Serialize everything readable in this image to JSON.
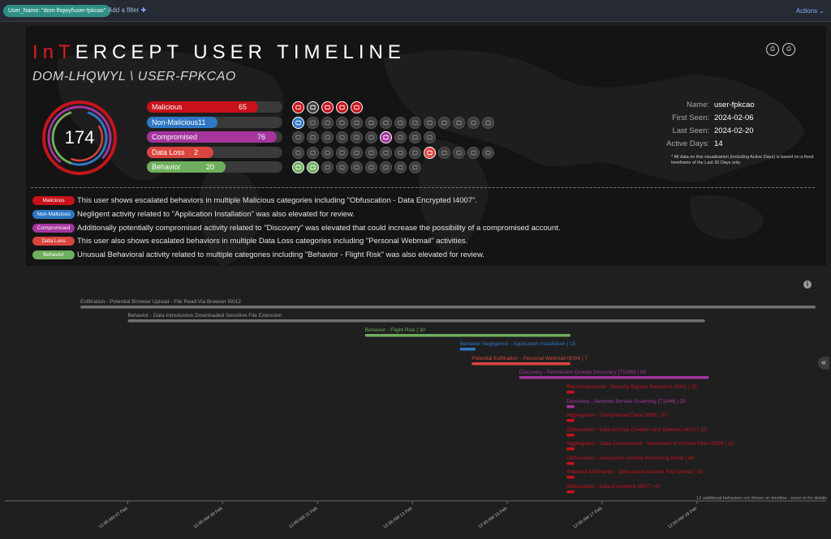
{
  "filterbar": {
    "filter_pill": "User_Name: \"dom-lhqwyl\\user-fpkcao\"",
    "add_filter": "Add a filter",
    "actions": "Actions"
  },
  "header": {
    "title_red": "InT",
    "title_rest": "ERCEPT USER TIMELINE",
    "subtitle": "DOM-LHQWYL \\ USER-FPKCAO",
    "pdf_buttons": [
      "pdf-landscape-icon",
      "pdf-portrait-icon"
    ]
  },
  "score": {
    "value": "174",
    "colors": {
      "outer": "#c5141b",
      "mid": "#a5359c",
      "inner_blue": "#2f78c4",
      "inner_green": "#6fae5c",
      "inner_red": "#d9443d"
    }
  },
  "categories": [
    {
      "label": "Malicious",
      "count": "65",
      "fraction": 0.82,
      "color": "#c8111a"
    },
    {
      "label": "Non-Malicious",
      "count": "11",
      "fraction": 0.52,
      "color": "#2f78c4"
    },
    {
      "label": "Compromised",
      "count": "76",
      "fraction": 0.96,
      "color": "#a5359c"
    },
    {
      "label": "Data Loss",
      "count": "2",
      "fraction": 0.49,
      "color": "#d9443d"
    },
    {
      "label": "Behavior",
      "count": "20",
      "fraction": 0.58,
      "color": "#6fae5c"
    }
  ],
  "icon_rows": [
    [
      "search-icon",
      "shield-icon",
      "file-lock-icon",
      "mail-icon",
      "export-icon"
    ],
    [
      "download-icon",
      "globe-icon",
      "clock-icon",
      "minus-icon",
      "printer-icon",
      "usb-icon",
      "folder-icon",
      "list-icon",
      "monitor-icon",
      "image-icon",
      "document-icon",
      "copy-icon",
      "calendar-icon",
      "laptop-icon"
    ],
    [
      "user-icon",
      "key-icon",
      "lock-icon",
      "chat-icon",
      "gear-icon",
      "magnifier-icon",
      "monitor-icon",
      "screen-icon",
      "terminal-icon",
      "display-icon"
    ],
    [
      "archive-icon",
      "camera-icon",
      "phone-icon",
      "bluetooth-icon",
      "cloud-icon",
      "wifi-icon",
      "tablet-icon",
      "envelope-icon",
      "card-icon",
      "screen-icon",
      "server-icon",
      "network-icon",
      "drive-icon",
      "share-icon"
    ],
    [
      "briefcase-icon",
      "flight-icon",
      "person-icon",
      "edit-icon",
      "badge-icon",
      "chart-icon",
      "lock-icon",
      "flag-icon",
      "bell-icon"
    ]
  ],
  "icon_highlights": {
    "0": {
      "0": "#c8111a",
      "1": "#3d3d3d",
      "2": "#c8111a",
      "3": "#c8111a",
      "4": "#c8111a"
    },
    "1": {
      "0": "#2f78c4"
    },
    "2": {
      "6": "#a5359c"
    },
    "3": {
      "9": "#d9443d"
    },
    "4": {
      "0": "#6fae5c",
      "1": "#6fae5c"
    }
  },
  "user_info": {
    "rows": [
      {
        "label": "Name:",
        "value": "user-fpkcao"
      },
      {
        "label": "First Seen:",
        "value": "2024-02-06"
      },
      {
        "label": "Last Seen:",
        "value": "2024-02-20"
      },
      {
        "label": "Active Days:",
        "value": "14"
      }
    ],
    "note": "* All data on this visualisation (including Active Days) is based on a fixed timeframe of the Last 30 Days only."
  },
  "summary": [
    {
      "badge": "Malicious",
      "color": "#c8111a",
      "text": "This user shows escalated behaviors in multiple Malicious categories including \"Obfuscation - Data Encrypted I4007\"."
    },
    {
      "badge": "Non-Malicious",
      "color": "#2f78c4",
      "text": "Negligent activity related to \"Application Installation\" was also elevated for review."
    },
    {
      "badge": "Compromised",
      "color": "#a5359c",
      "text": "Additionally potentially compromised activity related to \"Discovery\" was elevated that could increase the possibility of a compromised account."
    },
    {
      "badge": "Data Loss",
      "color": "#d9443d",
      "text": "This user also shows escalated behaviors in multiple Data Loss categories including \"Personal Webmail\" activities."
    },
    {
      "badge": "Behavior",
      "color": "#6fae5c",
      "text": "Unusual Behavioral activity related to multiple categories including \"Behavior - Flight Risk\" was also elevated for review."
    }
  ],
  "timeline": {
    "start": "2024-02-06T00:00",
    "end": "2024-02-21T12:00",
    "axis_ticks": [
      {
        "label": "12:00 AM 07 Feb",
        "t": "2024-02-07T00:00"
      },
      {
        "label": "12:00 AM 09 Feb",
        "t": "2024-02-09T00:00"
      },
      {
        "label": "12:00 AM 11 Feb",
        "t": "2024-02-11T00:00"
      },
      {
        "label": "12:00 AM 13 Feb",
        "t": "2024-02-13T00:00"
      },
      {
        "label": "12:00 AM 15 Feb",
        "t": "2024-02-15T00:00"
      },
      {
        "label": "12:00 AM 17 Feb",
        "t": "2024-02-17T00:00"
      },
      {
        "label": "12:00 AM 19 Feb",
        "t": "2024-02-19T00:00"
      }
    ],
    "items": [
      {
        "label": "Exfiltration - Potential Browser Upload - File Read Via Browser I5012",
        "start": "2024-02-06T00:00",
        "end": "2024-02-21T12:00",
        "color": "#707070"
      },
      {
        "label": "Behavior - Data Introduction Downloaded Sensitive File Extension",
        "start": "2024-02-07T00:00",
        "end": "2024-02-19T04:00",
        "color": "#707070"
      },
      {
        "label": "Behavior - Flight Risk | 30",
        "start": "2024-02-12T00:00",
        "end": "2024-02-16T08:00",
        "color": "#6fae5c"
      },
      {
        "label": "Behavior Negligence - Application Installation | 15",
        "start": "2024-02-14T00:00",
        "end": "2024-02-14T08:00",
        "color": "#2f78c4"
      },
      {
        "label": "Potential Exfiltration - Personal Webmail I5004 | 7",
        "start": "2024-02-14T06:00",
        "end": "2024-02-16T08:00",
        "color": "#d9443d"
      },
      {
        "label": "Discovery - Permission Groups Discovery [T1069] | 55",
        "start": "2024-02-15T06:00",
        "end": "2024-02-19T06:00",
        "color": "#a5359c"
      },
      {
        "label": "Reconnaissance - Security Bypass Research I1001 | 25",
        "start": "2024-02-16T06:00",
        "end": "2024-02-16T10:00",
        "color": "#c8111a"
      },
      {
        "label": "Discovery - Network Service Scanning [T1046] | 25",
        "start": "2024-02-16T06:00",
        "end": "2024-02-16T10:00",
        "color": "#a5359c"
      },
      {
        "label": "Aggregation - Compressed Data I3006 | 20",
        "start": "2024-02-16T06:00",
        "end": "2024-02-16T10:00",
        "color": "#c8111a"
      },
      {
        "label": "Obfuscation - Data Archive Creation and Deletion I4012 | 10",
        "start": "2024-02-16T06:00",
        "end": "2024-02-16T10:00",
        "color": "#c8111a"
      },
      {
        "label": "Aggregation - Data Compressed - Movement of Archive Files I3009 | 10",
        "start": "2024-02-16T06:00",
        "end": "2024-02-16T10:00",
        "color": "#c8111a"
      },
      {
        "label": "Obfuscation - Suspicious Archive Renaming I4008 | 40",
        "start": "2024-02-16T06:00",
        "end": "2024-02-16T10:00",
        "color": "#c8111a"
      },
      {
        "label": "Potential Exfiltration - Obfuscated Internet File Upload | 10",
        "start": "2024-02-16T06:00",
        "end": "2024-02-16T10:00",
        "color": "#c8111a"
      },
      {
        "label": "Obfuscation - Data Encrypted I4007 | 47",
        "start": "2024-02-16T06:00",
        "end": "2024-02-16T10:00",
        "color": "#c8111a"
      }
    ],
    "more_note": "12 additional behaviors not shown on timeline - zoom in for details",
    "info_glyph": "i",
    "collapse_glyph": "«"
  }
}
